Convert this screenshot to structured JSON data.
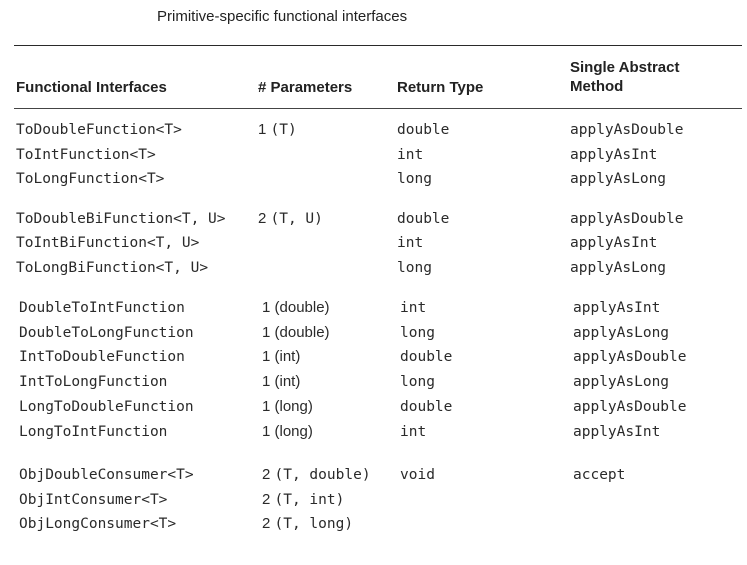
{
  "caption": "Primitive-specific functional interfaces",
  "headers": {
    "interfaces": "Functional Interfaces",
    "params": "# Parameters",
    "return_type": "Return Type",
    "sam_line1": "Single Abstract",
    "sam_line2": "Method"
  },
  "rows": [
    {
      "iface": "ToDoubleFunction<T>",
      "p_num": "1",
      "p_args": "(T)",
      "ret": "double",
      "method": "applyAsDouble"
    },
    {
      "iface": "ToIntFunction<T>",
      "p_num": "",
      "p_args": "",
      "ret": "int",
      "method": "applyAsInt"
    },
    {
      "iface": "ToLongFunction<T>",
      "p_num": "",
      "p_args": "",
      "ret": "long",
      "method": "applyAsLong"
    },
    {
      "iface": "ToDoubleBiFunction<T, U>",
      "p_num": "2",
      "p_args": "(T, U)",
      "ret": "double",
      "method": "applyAsDouble"
    },
    {
      "iface": "ToIntBiFunction<T, U>",
      "p_num": "",
      "p_args": "",
      "ret": "int",
      "method": "applyAsInt"
    },
    {
      "iface": "ToLongBiFunction<T, U>",
      "p_num": "",
      "p_args": "",
      "ret": "long",
      "method": "applyAsLong"
    },
    {
      "iface": "DoubleToIntFunction",
      "p_num": "1",
      "p_args": "(double)",
      "ret": "int",
      "method": "applyAsInt"
    },
    {
      "iface": "DoubleToLongFunction",
      "p_num": "1",
      "p_args": "(double)",
      "ret": "long",
      "method": "applyAsLong"
    },
    {
      "iface": "IntToDoubleFunction",
      "p_num": "1",
      "p_args": "(int)",
      "ret": "double",
      "method": "applyAsDouble"
    },
    {
      "iface": "IntToLongFunction",
      "p_num": "1",
      "p_args": "(int)",
      "ret": "long",
      "method": "applyAsLong"
    },
    {
      "iface": "LongToDoubleFunction",
      "p_num": "1",
      "p_args": "(long)",
      "ret": "double",
      "method": "applyAsDouble"
    },
    {
      "iface": "LongToIntFunction",
      "p_num": "1",
      "p_args": "(long)",
      "ret": "int",
      "method": "applyAsInt"
    },
    {
      "iface": "ObjDoubleConsumer<T>",
      "p_num": "2",
      "p_args": "(T, double)",
      "ret": "void",
      "method": "accept"
    },
    {
      "iface": "ObjIntConsumer<T>",
      "p_num": "2",
      "p_args": "(T, int)",
      "ret": "",
      "method": ""
    },
    {
      "iface": "ObjLongConsumer<T>",
      "p_num": "2",
      "p_args": "(T, long)",
      "ret": "",
      "method": ""
    }
  ]
}
